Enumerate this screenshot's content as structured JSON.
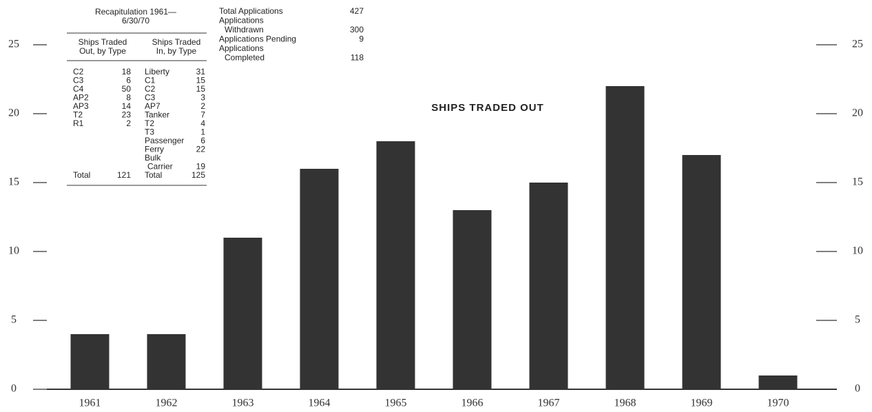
{
  "chart_data": {
    "type": "bar",
    "title": "SHIPS TRADED OUT",
    "categories": [
      "1961",
      "1962",
      "1963",
      "1964",
      "1965",
      "1966",
      "1967",
      "1968",
      "1969",
      "1970"
    ],
    "values": [
      4,
      4,
      11,
      16,
      18,
      13,
      15,
      22,
      17,
      1
    ],
    "color": "#333333",
    "ylim": [
      0,
      28
    ],
    "yticks": [
      0,
      5,
      10,
      15,
      20,
      25
    ],
    "right_axis": true
  },
  "recap": {
    "title": [
      "Recapitulation 1961—",
      "6/30/70"
    ],
    "out_header": [
      "Ships Traded",
      "Out, by Type"
    ],
    "in_header": [
      "Ships Traded",
      "In, by Type"
    ],
    "out_rows": [
      {
        "type": [
          "C2"
        ],
        "count": 18
      },
      {
        "type": [
          "C3"
        ],
        "count": 6
      },
      {
        "type": [
          "C4"
        ],
        "count": 50
      },
      {
        "type": [
          "AP2"
        ],
        "count": 8
      },
      {
        "type": [
          "AP3"
        ],
        "count": 14
      },
      {
        "type": [
          "T2"
        ],
        "count": 23
      },
      {
        "type": [
          "R1"
        ],
        "count": 2
      }
    ],
    "in_rows": [
      {
        "type": [
          "Liberty"
        ],
        "count": 31
      },
      {
        "type": [
          "C1"
        ],
        "count": 15
      },
      {
        "type": [
          "C2"
        ],
        "count": 15
      },
      {
        "type": [
          "C3"
        ],
        "count": 3
      },
      {
        "type": [
          "AP7"
        ],
        "count": 2
      },
      {
        "type": [
          "Tanker"
        ],
        "count": 7
      },
      {
        "type": [
          "T2"
        ],
        "count": 4
      },
      {
        "type": [
          "T3"
        ],
        "count": 1
      },
      {
        "type": [
          "Passenger"
        ],
        "count": 6
      },
      {
        "type": [
          "Ferry"
        ],
        "count": 22
      },
      {
        "type": [
          "Bulk",
          "Carrier"
        ],
        "count": 19
      }
    ],
    "out_total": {
      "label": "Total",
      "count": 121
    },
    "in_total": {
      "label": "Total",
      "count": 125
    }
  },
  "applications": [
    {
      "label": [
        "Total Applications"
      ],
      "count": 427
    },
    {
      "label": [
        "Applications",
        "Withdrawn"
      ],
      "count": 300
    },
    {
      "label": [
        "Applications Pending"
      ],
      "count": 9
    },
    {
      "label": [
        "Applications",
        "Completed"
      ],
      "count": 118
    }
  ]
}
